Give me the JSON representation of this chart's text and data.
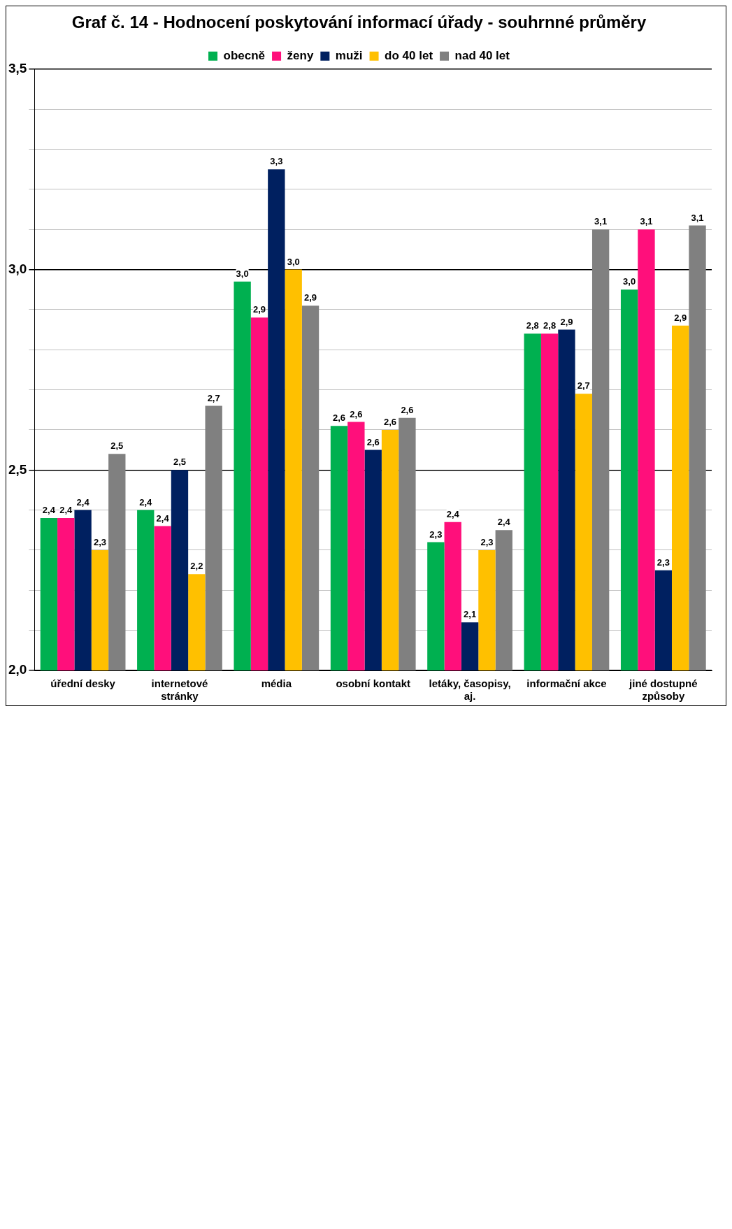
{
  "chart_data": {
    "type": "bar",
    "title": "Graf č. 14 - Hodnocení poskytování informací úřady - souhrnné průměry",
    "categories": [
      "úřední desky",
      "internetové stránky",
      "média",
      "osobní kontakt",
      "letáky, časopisy, aj.",
      "informační akce",
      "jiné dostupné způsoby"
    ],
    "series": [
      {
        "name": "obecně",
        "color": "#00b050",
        "values": [
          2.38,
          2.4,
          2.97,
          2.61,
          2.32,
          2.84,
          2.95
        ],
        "value_labels": [
          "2,4",
          "2,4",
          "3,0",
          "2,6",
          "2,3",
          "2,8",
          "3,0"
        ]
      },
      {
        "name": "ženy",
        "color": "#ff0f7b",
        "values": [
          2.38,
          2.36,
          2.88,
          2.62,
          2.37,
          2.84,
          3.1
        ],
        "value_labels": [
          "2,4",
          "2,4",
          "2,9",
          "2,6",
          "2,4",
          "2,8",
          "3,1"
        ]
      },
      {
        "name": "muži",
        "color": "#002060",
        "values": [
          2.4,
          2.5,
          3.25,
          2.55,
          2.12,
          2.85,
          2.25
        ],
        "value_labels": [
          "2,4",
          "2,5",
          "3,3",
          "2,6",
          "2,1",
          "2,9",
          "2,3"
        ]
      },
      {
        "name": "do 40 let",
        "color": "#ffc000",
        "values": [
          2.3,
          2.24,
          3.0,
          2.6,
          2.3,
          2.69,
          2.86
        ],
        "value_labels": [
          "2,3",
          "2,2",
          "3,0",
          "2,6",
          "2,3",
          "2,7",
          "2,9"
        ]
      },
      {
        "name": "nad 40 let",
        "color": "#808080",
        "values": [
          2.54,
          2.66,
          2.91,
          2.63,
          2.35,
          3.1,
          3.11
        ],
        "value_labels": [
          "2,5",
          "2,7",
          "2,9",
          "2,6",
          "2,4",
          "3,1",
          "3,1"
        ]
      }
    ],
    "ylim": [
      2,
      3.5
    ],
    "yticks": [
      {
        "value": 2,
        "label": "2,0"
      },
      {
        "value": 2.1,
        "label": null
      },
      {
        "value": 2.2,
        "label": null
      },
      {
        "value": 2.3,
        "label": null
      },
      {
        "value": 2.4,
        "label": null
      },
      {
        "value": 2.5,
        "label": "2,5"
      },
      {
        "value": 2.6,
        "label": null
      },
      {
        "value": 2.7,
        "label": null
      },
      {
        "value": 2.8,
        "label": null
      },
      {
        "value": 2.9,
        "label": null
      },
      {
        "value": 3,
        "label": "3,0"
      },
      {
        "value": 3.1,
        "label": null
      },
      {
        "value": 3.2,
        "label": null
      },
      {
        "value": 3.3,
        "label": null
      },
      {
        "value": 3.4,
        "label": null
      },
      {
        "value": 3.5,
        "label": "3,5"
      }
    ],
    "grid": "y",
    "legend": "top"
  }
}
